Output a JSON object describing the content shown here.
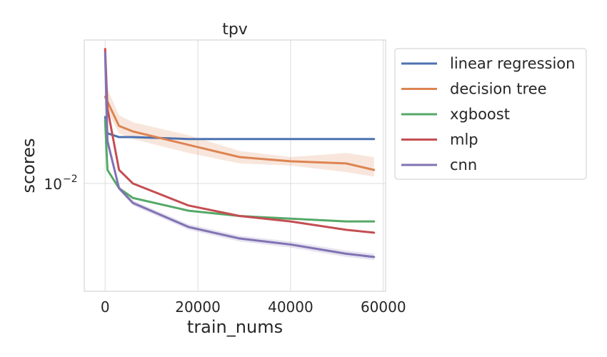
{
  "chart_data": {
    "type": "line",
    "title": "tpv",
    "xlabel": "train_nums",
    "ylabel": "scores",
    "xlim": [
      -4500,
      60500
    ],
    "xticks": [
      0,
      20000,
      40000,
      60000
    ],
    "xtick_labels": [
      "0",
      "20000",
      "40000",
      "60000"
    ],
    "y_scale": "log",
    "ylim": [
      0.0063,
      0.0185
    ],
    "yticks": [
      0.01
    ],
    "ytick_labels": [
      "10",
      "−2"
    ],
    "grid": true,
    "legend_position": "outside-right",
    "series": [
      {
        "name": "linear regression",
        "color": "#4c72b0",
        "x": [
          0,
          500,
          3000,
          6000,
          18000,
          29000,
          40000,
          52000,
          58000
        ],
        "y": [
          0.0133,
          0.0124,
          0.0122,
          0.0122,
          0.0121,
          0.0121,
          0.0121,
          0.0121,
          0.0121
        ]
      },
      {
        "name": "decision tree",
        "color": "#dd8452",
        "x": [
          0,
          500,
          3000,
          6000,
          18000,
          29000,
          40000,
          52000,
          58000
        ],
        "y": [
          0.0145,
          0.0142,
          0.0128,
          0.0125,
          0.0118,
          0.0112,
          0.011,
          0.0109,
          0.0106
        ],
        "band": [
          [
            0.0155,
            0.014
          ],
          [
            0.015,
            0.0136
          ],
          [
            0.0134,
            0.0124
          ],
          [
            0.013,
            0.0121
          ],
          [
            0.0123,
            0.0114
          ],
          [
            0.0115,
            0.0109
          ],
          [
            0.0112,
            0.0108
          ],
          [
            0.0114,
            0.0105
          ],
          [
            0.0112,
            0.0103
          ]
        ]
      },
      {
        "name": "xgboost",
        "color": "#55a868",
        "x": [
          0,
          500,
          3000,
          6000,
          18000,
          29000,
          40000,
          52000,
          58000
        ],
        "y": [
          0.0131,
          0.0106,
          0.0098,
          0.0094,
          0.0089,
          0.0087,
          0.0086,
          0.0085,
          0.0085
        ]
      },
      {
        "name": "mlp",
        "color": "#c44e52",
        "x": [
          0,
          500,
          3000,
          6000,
          18000,
          29000,
          40000,
          52000,
          58000
        ],
        "y": [
          0.0178,
          0.0138,
          0.0106,
          0.01,
          0.0091,
          0.0087,
          0.0085,
          0.0082,
          0.0081
        ]
      },
      {
        "name": "cnn",
        "color": "#8172b3",
        "x": [
          0,
          500,
          3000,
          6000,
          18000,
          29000,
          40000,
          52000,
          58000
        ],
        "y": [
          0.0175,
          0.012,
          0.0098,
          0.0092,
          0.0083,
          0.0079,
          0.0077,
          0.0074,
          0.0073
        ],
        "band": [
          [
            0.018,
            0.0168
          ],
          [
            0.0123,
            0.0117
          ],
          [
            0.0099,
            0.0097
          ],
          [
            0.0093,
            0.0091
          ],
          [
            0.0084,
            0.0082
          ],
          [
            0.008,
            0.0078
          ],
          [
            0.0078,
            0.0076
          ],
          [
            0.0075,
            0.0073
          ],
          [
            0.0074,
            0.0072
          ]
        ]
      }
    ]
  }
}
